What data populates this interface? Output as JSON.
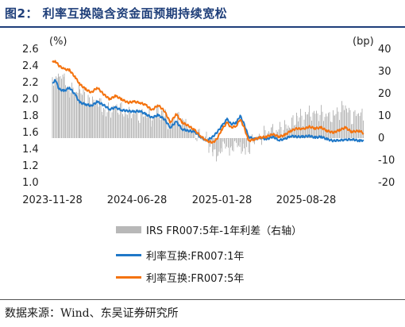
{
  "header": {
    "title": "图2：   利率互换隐含资金面预期持续宽松"
  },
  "footer": {
    "source": "数据来源：Wind、东吴证券研究所"
  },
  "colors": {
    "title": "#1f3f7a",
    "spread_bar": "#b8b8b8",
    "irs_1y": "#1f78c8",
    "irs_5y": "#f4730f"
  },
  "chart_data": {
    "type": "line",
    "left_axis": {
      "unit_label": "(%)",
      "ylim": [
        1.0,
        2.6
      ],
      "ticks": [
        "2.6",
        "2.4",
        "2.2",
        "2.0",
        "1.8",
        "1.6",
        "1.4",
        "1.2",
        "1.0"
      ]
    },
    "right_axis": {
      "unit_label": "(bp)",
      "ylim": [
        -20,
        40
      ],
      "ticks": [
        "40",
        "30",
        "20",
        "10",
        "0",
        "-10",
        "-20"
      ]
    },
    "x_tick_labels": [
      "2023-11-28",
      "2024-06-28",
      "2025-01-28",
      "2025-08-28"
    ],
    "x_range": [
      "2023-11-28",
      "2026-01-28"
    ],
    "legend": [
      "IRS FR007:5年-1年利差（右轴）",
      "利率互换:FR007:1年",
      "利率互换:FR007:5年"
    ],
    "series": [
      {
        "name": "利率互换:FR007:1年",
        "type": "line",
        "axis": "left",
        "points": [
          [
            "2023-11-28",
            2.18
          ],
          [
            "2023-12-05",
            2.24
          ],
          [
            "2023-12-15",
            2.12
          ],
          [
            "2023-12-28",
            2.1
          ],
          [
            "2024-01-10",
            2.14
          ],
          [
            "2024-01-25",
            2.05
          ],
          [
            "2024-02-05",
            1.96
          ],
          [
            "2024-02-20",
            1.94
          ],
          [
            "2024-03-05",
            1.92
          ],
          [
            "2024-03-20",
            1.97
          ],
          [
            "2024-04-05",
            1.93
          ],
          [
            "2024-04-20",
            1.88
          ],
          [
            "2024-05-05",
            1.9
          ],
          [
            "2024-05-20",
            1.87
          ],
          [
            "2024-06-05",
            1.86
          ],
          [
            "2024-06-20",
            1.85
          ],
          [
            "2024-07-05",
            1.86
          ],
          [
            "2024-07-20",
            1.82
          ],
          [
            "2024-08-05",
            1.78
          ],
          [
            "2024-08-20",
            1.81
          ],
          [
            "2024-09-05",
            1.76
          ],
          [
            "2024-09-20",
            1.66
          ],
          [
            "2024-10-05",
            1.73
          ],
          [
            "2024-10-20",
            1.64
          ],
          [
            "2024-11-05",
            1.62
          ],
          [
            "2024-11-20",
            1.61
          ],
          [
            "2024-12-05",
            1.55
          ],
          [
            "2024-12-20",
            1.5
          ],
          [
            "2025-01-05",
            1.55
          ],
          [
            "2025-01-15",
            1.6
          ],
          [
            "2025-01-28",
            1.68
          ],
          [
            "2025-02-10",
            1.76
          ],
          [
            "2025-02-20",
            1.7
          ],
          [
            "2025-03-05",
            1.72
          ],
          [
            "2025-03-15",
            1.8
          ],
          [
            "2025-03-25",
            1.7
          ],
          [
            "2025-04-05",
            1.55
          ],
          [
            "2025-04-20",
            1.52
          ],
          [
            "2025-05-05",
            1.54
          ],
          [
            "2025-05-20",
            1.52
          ],
          [
            "2025-06-05",
            1.55
          ],
          [
            "2025-06-20",
            1.51
          ],
          [
            "2025-07-05",
            1.52
          ],
          [
            "2025-07-20",
            1.56
          ],
          [
            "2025-08-05",
            1.55
          ],
          [
            "2025-08-20",
            1.55
          ],
          [
            "2025-09-05",
            1.56
          ],
          [
            "2025-09-20",
            1.54
          ],
          [
            "2025-10-05",
            1.55
          ],
          [
            "2025-10-20",
            1.52
          ],
          [
            "2025-11-05",
            1.5
          ],
          [
            "2025-11-20",
            1.51
          ],
          [
            "2025-12-05",
            1.51
          ],
          [
            "2025-12-20",
            1.52
          ],
          [
            "2026-01-10",
            1.5
          ],
          [
            "2026-01-20",
            1.51
          ]
        ]
      },
      {
        "name": "利率互换:FR007:5年",
        "type": "line",
        "axis": "left",
        "points": [
          [
            "2023-11-28",
            2.44
          ],
          [
            "2023-12-05",
            2.46
          ],
          [
            "2023-12-15",
            2.4
          ],
          [
            "2023-12-28",
            2.36
          ],
          [
            "2024-01-10",
            2.35
          ],
          [
            "2024-01-25",
            2.26
          ],
          [
            "2024-02-05",
            2.18
          ],
          [
            "2024-02-20",
            2.12
          ],
          [
            "2024-03-05",
            2.08
          ],
          [
            "2024-03-20",
            2.14
          ],
          [
            "2024-04-05",
            2.06
          ],
          [
            "2024-04-20",
            2.0
          ],
          [
            "2024-05-05",
            2.04
          ],
          [
            "2024-05-20",
            2.0
          ],
          [
            "2024-06-05",
            1.96
          ],
          [
            "2024-06-20",
            1.97
          ],
          [
            "2024-07-05",
            1.96
          ],
          [
            "2024-07-20",
            1.93
          ],
          [
            "2024-08-05",
            1.87
          ],
          [
            "2024-08-20",
            1.93
          ],
          [
            "2024-09-05",
            1.86
          ],
          [
            "2024-09-20",
            1.72
          ],
          [
            "2024-10-05",
            1.82
          ],
          [
            "2024-10-20",
            1.72
          ],
          [
            "2024-11-05",
            1.68
          ],
          [
            "2024-11-20",
            1.63
          ],
          [
            "2024-12-05",
            1.56
          ],
          [
            "2024-12-20",
            1.5
          ],
          [
            "2025-01-05",
            1.48
          ],
          [
            "2025-01-15",
            1.52
          ],
          [
            "2025-01-28",
            1.64
          ],
          [
            "2025-02-10",
            1.72
          ],
          [
            "2025-02-20",
            1.66
          ],
          [
            "2025-03-05",
            1.68
          ],
          [
            "2025-03-15",
            1.76
          ],
          [
            "2025-03-25",
            1.66
          ],
          [
            "2025-04-05",
            1.5
          ],
          [
            "2025-04-20",
            1.52
          ],
          [
            "2025-05-05",
            1.54
          ],
          [
            "2025-05-20",
            1.55
          ],
          [
            "2025-06-05",
            1.58
          ],
          [
            "2025-06-20",
            1.55
          ],
          [
            "2025-07-05",
            1.57
          ],
          [
            "2025-07-20",
            1.62
          ],
          [
            "2025-08-05",
            1.65
          ],
          [
            "2025-08-20",
            1.64
          ],
          [
            "2025-09-05",
            1.67
          ],
          [
            "2025-09-20",
            1.65
          ],
          [
            "2025-10-05",
            1.66
          ],
          [
            "2025-10-20",
            1.62
          ],
          [
            "2025-11-05",
            1.6
          ],
          [
            "2025-11-20",
            1.63
          ],
          [
            "2025-12-05",
            1.66
          ],
          [
            "2025-12-20",
            1.61
          ],
          [
            "2026-01-10",
            1.62
          ],
          [
            "2026-01-20",
            1.59
          ]
        ]
      },
      {
        "name": "IRS FR007:5年-1年利差（右轴）",
        "type": "bar",
        "axis": "right",
        "points": [
          [
            "2023-11-28",
            26
          ],
          [
            "2023-12-15",
            28
          ],
          [
            "2023-12-28",
            26
          ],
          [
            "2024-01-10",
            22
          ],
          [
            "2024-01-25",
            21
          ],
          [
            "2024-02-05",
            22
          ],
          [
            "2024-02-20",
            18
          ],
          [
            "2024-03-05",
            16
          ],
          [
            "2024-03-20",
            17
          ],
          [
            "2024-04-05",
            13
          ],
          [
            "2024-04-20",
            12
          ],
          [
            "2024-05-05",
            14
          ],
          [
            "2024-05-20",
            13
          ],
          [
            "2024-06-05",
            10
          ],
          [
            "2024-06-20",
            12
          ],
          [
            "2024-07-05",
            10
          ],
          [
            "2024-07-20",
            11
          ],
          [
            "2024-08-05",
            9
          ],
          [
            "2024-08-20",
            12
          ],
          [
            "2024-09-05",
            10
          ],
          [
            "2024-09-20",
            6
          ],
          [
            "2024-10-05",
            9
          ],
          [
            "2024-10-20",
            8
          ],
          [
            "2024-11-05",
            6
          ],
          [
            "2024-11-20",
            2
          ],
          [
            "2024-12-05",
            1
          ],
          [
            "2024-12-20",
            0
          ],
          [
            "2025-01-05",
            -7
          ],
          [
            "2025-01-15",
            -8
          ],
          [
            "2025-01-28",
            -4
          ],
          [
            "2025-02-10",
            -4
          ],
          [
            "2025-02-20",
            -4
          ],
          [
            "2025-03-05",
            -4
          ],
          [
            "2025-03-15",
            -4
          ],
          [
            "2025-03-25",
            -4
          ],
          [
            "2025-04-05",
            -5
          ],
          [
            "2025-04-20",
            0
          ],
          [
            "2025-05-05",
            0
          ],
          [
            "2025-05-20",
            3
          ],
          [
            "2025-06-05",
            3
          ],
          [
            "2025-06-20",
            4
          ],
          [
            "2025-07-05",
            5
          ],
          [
            "2025-07-20",
            6
          ],
          [
            "2025-08-05",
            10
          ],
          [
            "2025-08-20",
            9
          ],
          [
            "2025-09-05",
            11
          ],
          [
            "2025-09-20",
            11
          ],
          [
            "2025-10-05",
            11
          ],
          [
            "2025-10-20",
            10
          ],
          [
            "2025-11-05",
            10
          ],
          [
            "2025-11-20",
            12
          ],
          [
            "2025-12-05",
            15
          ],
          [
            "2025-12-20",
            9
          ],
          [
            "2026-01-10",
            12
          ],
          [
            "2026-01-20",
            8
          ]
        ]
      }
    ]
  }
}
